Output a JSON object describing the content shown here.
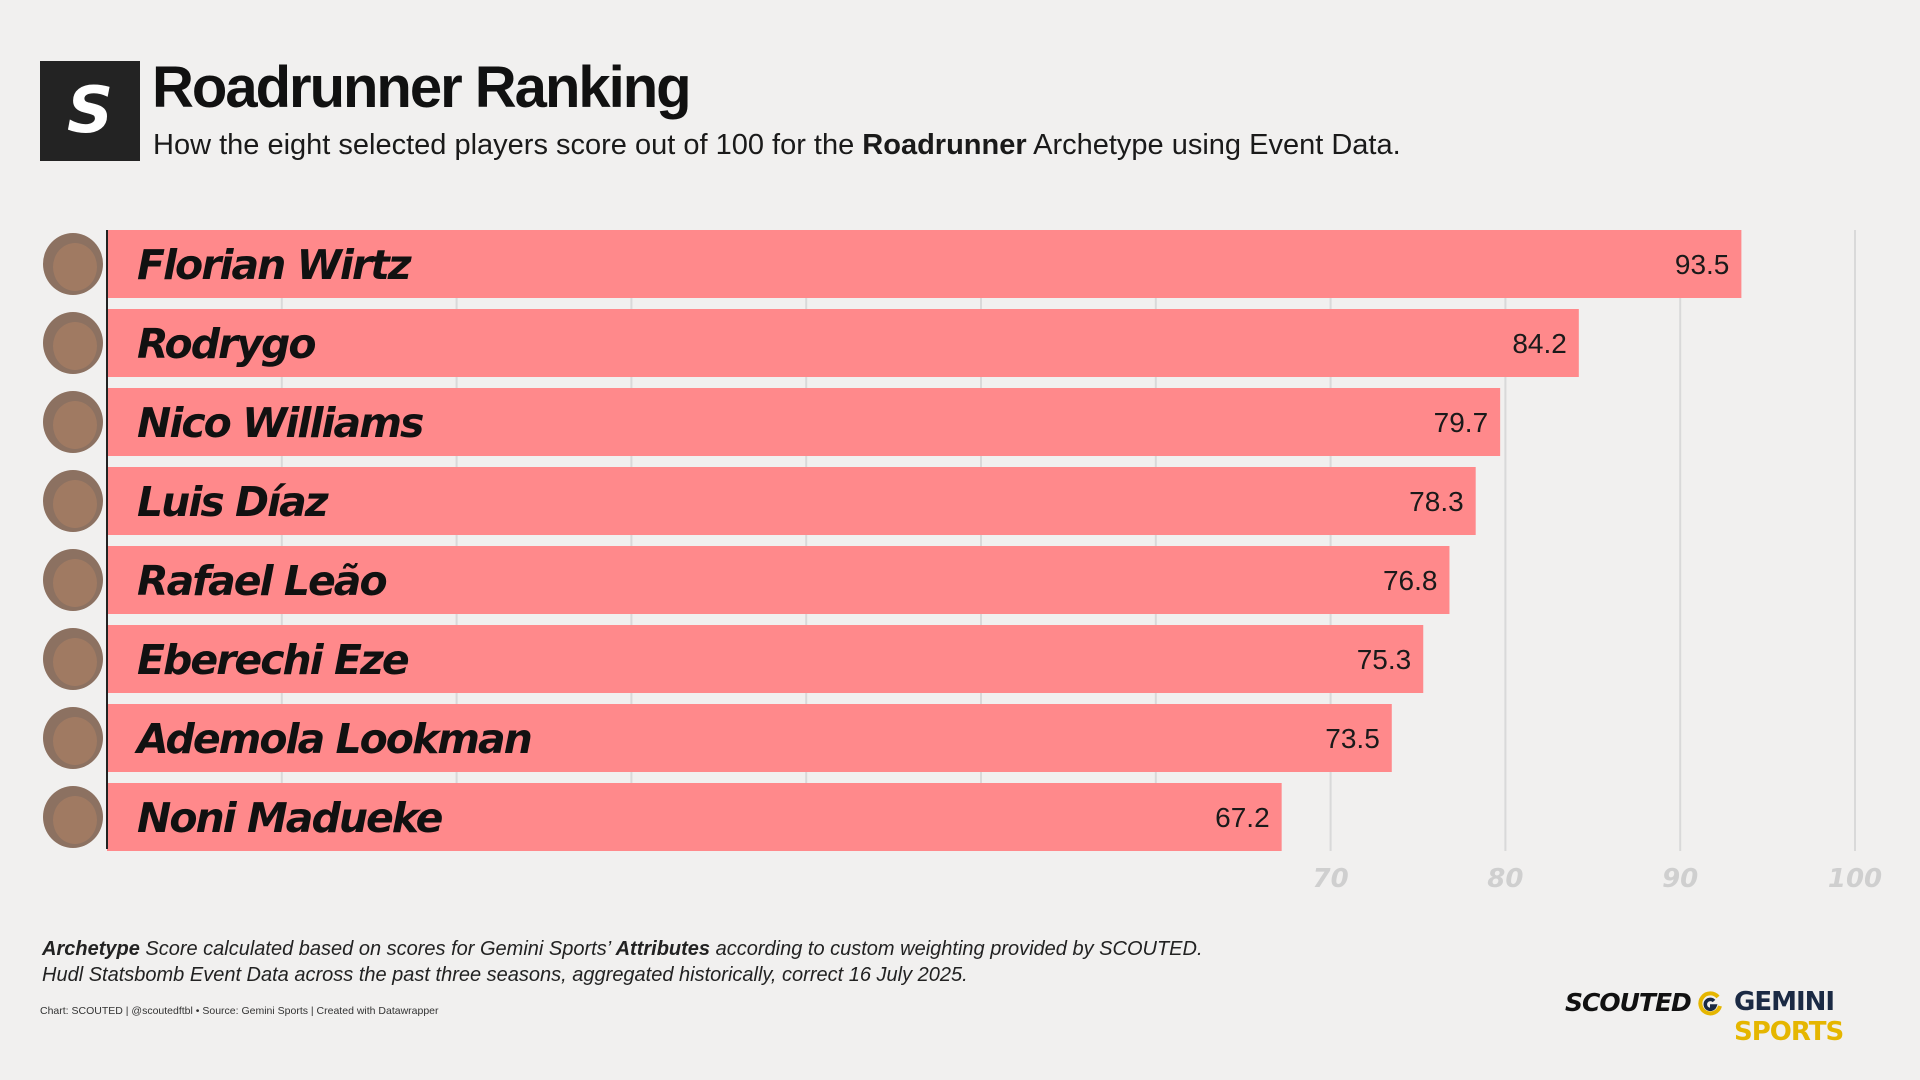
{
  "header": {
    "logo_letter": "S",
    "title": "Roadrunner Ranking",
    "subtitle_pre": "How the eight selected players score out of 100 for the ",
    "subtitle_bold": "Roadrunner",
    "subtitle_post": " Archetype using Event Data."
  },
  "chart_data": {
    "type": "bar",
    "orientation": "horizontal",
    "title": "Roadrunner Ranking",
    "categories": [
      "Florian Wirtz",
      "Rodrygo",
      "Nico Williams",
      "Luis Díaz",
      "Rafael Leão",
      "Eberechi Eze",
      "Ademola Lookman",
      "Noni Madueke"
    ],
    "values": [
      93.5,
      84.2,
      79.7,
      78.3,
      76.8,
      75.3,
      73.5,
      67.2
    ],
    "value_labels": [
      "93.5",
      "84.2",
      "79.7",
      "78.3",
      "76.8",
      "75.3",
      "73.5",
      "67.2"
    ],
    "xlim": [
      0,
      100
    ],
    "gridlines": [
      10,
      20,
      30,
      40,
      50,
      60,
      70,
      80,
      90,
      100
    ],
    "tick_labels": [
      "70",
      "80",
      "90",
      "100"
    ],
    "bar_color": "#ff898b",
    "grid": true
  },
  "notes": {
    "line1_b1": "Archetype",
    "line1_t1": " Score calculated based on scores for Gemini Sports’ ",
    "line1_b2": "Attributes",
    "line1_t2": " according to custom weighting provided by SCOUTED.",
    "line2": "Hudl Statsbomb Event Data across the past three seasons, aggregated historically, correct 16 July 2025."
  },
  "credits": "Chart: SCOUTED | @scoutedftbl • Source: Gemini Sports | Created with Datawrapper",
  "branding": {
    "scouted": "SCOUTED",
    "gemini": "GEMINI",
    "sports": "SPORTS"
  }
}
